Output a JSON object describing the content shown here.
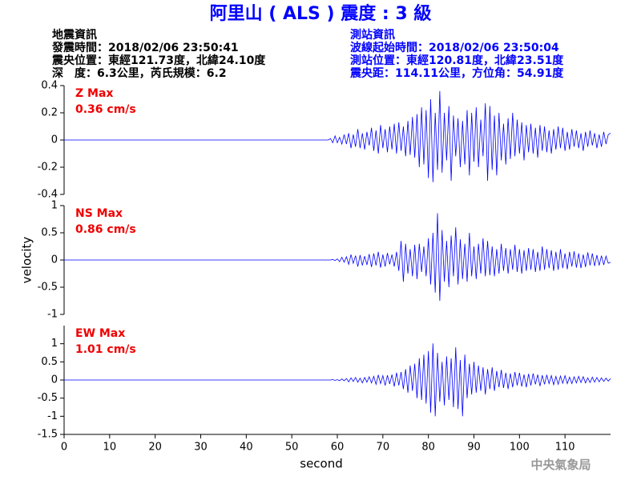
{
  "header": {
    "title": "阿里山 ( ALS ) 震度 : 3 級",
    "left": [
      "地震資訊",
      "發震時間：2018/02/06 23:50:41",
      "震央位置：東經121.73度，北緯24.10度",
      "深　度：6.3公里，芮氏規模：6.2"
    ],
    "right": [
      "測站資訊",
      "波線起始時間：2018/02/06 23:50:04",
      "測站位置：東經120.81度，北緯23.51度",
      "震央距：114.11公里，方位角：54.91度"
    ]
  },
  "y_label": "velocity",
  "watermark": "中央氣象局",
  "chart_data": [
    {
      "type": "line",
      "xlim": [
        0,
        120
      ],
      "ylim": [
        -0.4,
        0.4
      ],
      "yticks": [
        -0.4,
        -0.2,
        0,
        0.2,
        0.4
      ],
      "annotation": "0.36 cm/s",
      "annotation_color": "#ee0000",
      "x": [
        0,
        58,
        58.5,
        59,
        59.5,
        60,
        60.5,
        61,
        61.5,
        62,
        62.5,
        63,
        63.5,
        64,
        64.5,
        65,
        65.5,
        66,
        66.5,
        67,
        67.5,
        68,
        68.5,
        69,
        69.5,
        70,
        70.5,
        71,
        71.5,
        72,
        72.5,
        73,
        73.5,
        74,
        74.5,
        75,
        75.5,
        76,
        76.5,
        77,
        77.5,
        78,
        78.5,
        79,
        79.5,
        80,
        80.5,
        81,
        81.5,
        82,
        82.5,
        83,
        83.5,
        84,
        84.5,
        85,
        85.5,
        86,
        86.5,
        87,
        87.5,
        88,
        88.5,
        89,
        89.5,
        90,
        90.5,
        91,
        91.5,
        92,
        92.5,
        93,
        93.5,
        94,
        94.5,
        95,
        95.5,
        96,
        96.5,
        97,
        97.5,
        98,
        98.5,
        99,
        99.5,
        100,
        100.5,
        101,
        101.5,
        102,
        102.5,
        103,
        103.5,
        104,
        104.5,
        105,
        105.5,
        106,
        106.5,
        107,
        107.5,
        108,
        108.5,
        109,
        109.5,
        110,
        110.5,
        111,
        111.5,
        112,
        112.5,
        113,
        113.5,
        114,
        114.5,
        115,
        115.5,
        116,
        116.5,
        117,
        117.5,
        118,
        118.5,
        119,
        119.5,
        120
      ],
      "series": [
        {
          "name": "Z Max",
          "color": "#0000ff",
          "values": [
            0,
            0,
            0.01,
            -0.02,
            0.03,
            -0.02,
            0.02,
            -0.03,
            0.04,
            -0.03,
            0.05,
            -0.06,
            0.04,
            -0.05,
            0.08,
            -0.06,
            0.05,
            -0.07,
            0.06,
            -0.04,
            0.09,
            -0.08,
            0.07,
            -0.1,
            0.11,
            -0.06,
            0.08,
            -0.09,
            0.1,
            -0.07,
            0.12,
            -0.1,
            0.13,
            -0.08,
            0.1,
            -0.12,
            0.14,
            -0.11,
            0.17,
            -0.13,
            0.19,
            -0.2,
            0.24,
            -0.18,
            0.22,
            -0.28,
            0.3,
            -0.31,
            0.2,
            -0.22,
            0.36,
            -0.24,
            0.2,
            -0.15,
            0.25,
            -0.3,
            0.18,
            -0.12,
            0.16,
            -0.2,
            0.14,
            -0.18,
            0.22,
            -0.26,
            0.2,
            -0.16,
            0.24,
            -0.2,
            0.15,
            -0.12,
            0.27,
            -0.3,
            0.25,
            -0.22,
            0.18,
            -0.26,
            0.2,
            -0.15,
            0.12,
            -0.18,
            0.16,
            -0.14,
            0.2,
            -0.12,
            0.15,
            -0.1,
            0.13,
            -0.15,
            0.11,
            -0.09,
            0.12,
            -0.1,
            0.09,
            -0.13,
            0.11,
            -0.08,
            0.1,
            -0.09,
            0.07,
            -0.1,
            0.08,
            -0.07,
            0.1,
            -0.06,
            0.09,
            -0.08,
            0.06,
            -0.07,
            0.08,
            -0.05,
            0.07,
            -0.06,
            0.05,
            -0.08,
            0.06,
            -0.05,
            0.07,
            -0.04,
            0.05,
            -0.06,
            0.04,
            -0.05,
            0.06,
            -0.03,
            0.04,
            0.05
          ]
        }
      ]
    },
    {
      "type": "line",
      "xlim": [
        0,
        120
      ],
      "ylim": [
        -1,
        1
      ],
      "yticks": [
        -1,
        -0.5,
        0,
        0.5,
        1
      ],
      "annotation": "0.86 cm/s",
      "annotation_color": "#ee0000",
      "x": [
        0,
        58,
        58.5,
        59,
        59.5,
        60,
        60.5,
        61,
        61.5,
        62,
        62.5,
        63,
        63.5,
        64,
        64.5,
        65,
        65.5,
        66,
        66.5,
        67,
        67.5,
        68,
        68.5,
        69,
        69.5,
        70,
        70.5,
        71,
        71.5,
        72,
        72.5,
        73,
        73.5,
        74,
        74.5,
        75,
        75.5,
        76,
        76.5,
        77,
        77.5,
        78,
        78.5,
        79,
        79.5,
        80,
        80.5,
        81,
        81.5,
        82,
        82.5,
        83,
        83.5,
        84,
        84.5,
        85,
        85.5,
        86,
        86.5,
        87,
        87.5,
        88,
        88.5,
        89,
        89.5,
        90,
        90.5,
        91,
        91.5,
        92,
        92.5,
        93,
        93.5,
        94,
        94.5,
        95,
        95.5,
        96,
        96.5,
        97,
        97.5,
        98,
        98.5,
        99,
        99.5,
        100,
        100.5,
        101,
        101.5,
        102,
        102.5,
        103,
        103.5,
        104,
        104.5,
        105,
        105.5,
        106,
        106.5,
        107,
        107.5,
        108,
        108.5,
        109,
        109.5,
        110,
        110.5,
        111,
        111.5,
        112,
        112.5,
        113,
        113.5,
        114,
        114.5,
        115,
        115.5,
        116,
        116.5,
        117,
        117.5,
        118,
        118.5,
        119,
        119.5,
        120
      ],
      "series": [
        {
          "name": "NS Max",
          "color": "#0000ff",
          "values": [
            0,
            0,
            0,
            0.01,
            -0.01,
            0.02,
            -0.03,
            0.05,
            -0.04,
            0.06,
            -0.08,
            0.1,
            -0.06,
            0.08,
            -0.12,
            0.09,
            -0.1,
            0.07,
            -0.09,
            0.11,
            -0.13,
            0.12,
            -0.1,
            0.15,
            -0.14,
            0.1,
            -0.12,
            0.13,
            -0.08,
            0.1,
            -0.12,
            0.15,
            -0.2,
            0.35,
            -0.4,
            0.3,
            -0.25,
            0.2,
            -0.3,
            0.28,
            -0.35,
            0.3,
            -0.22,
            0.25,
            -0.3,
            0.4,
            -0.45,
            0.5,
            -0.6,
            0.86,
            -0.75,
            0.55,
            -0.4,
            0.35,
            -0.5,
            0.45,
            -0.3,
            0.6,
            -0.45,
            0.38,
            -0.35,
            0.3,
            -0.4,
            0.5,
            -0.3,
            0.25,
            -0.35,
            0.3,
            -0.25,
            0.4,
            -0.3,
            0.35,
            -0.28,
            0.25,
            -0.3,
            0.2,
            -0.25,
            0.3,
            -0.2,
            0.22,
            -0.25,
            0.2,
            -0.18,
            0.28,
            -0.22,
            0.2,
            -0.25,
            0.18,
            -0.2,
            0.22,
            -0.18,
            0.2,
            -0.22,
            0.15,
            -0.2,
            0.25,
            -0.18,
            0.2,
            -0.15,
            0.18,
            -0.2,
            0.15,
            -0.18,
            0.2,
            -0.15,
            0.12,
            -0.17,
            0.15,
            -0.12,
            0.16,
            -0.14,
            0.12,
            -0.15,
            0.1,
            -0.13,
            0.14,
            -0.1,
            0.12,
            -0.11,
            0.09,
            -0.1,
            0.08,
            -0.09,
            0.07,
            -0.06,
            -0.04
          ]
        }
      ]
    },
    {
      "type": "line",
      "xlim": [
        0,
        120
      ],
      "ylim": [
        -1.5,
        1.5
      ],
      "yticks": [
        -1.5,
        -1,
        -0.5,
        0,
        0.5,
        1
      ],
      "xticks": [
        0,
        10,
        20,
        30,
        40,
        50,
        60,
        70,
        80,
        90,
        100,
        110
      ],
      "xlabel": "second",
      "annotation": "1.01 cm/s",
      "annotation_color": "#ee0000",
      "x": [
        0,
        58,
        58.5,
        59,
        59.5,
        60,
        60.5,
        61,
        61.5,
        62,
        62.5,
        63,
        63.5,
        64,
        64.5,
        65,
        65.5,
        66,
        66.5,
        67,
        67.5,
        68,
        68.5,
        69,
        69.5,
        70,
        70.5,
        71,
        71.5,
        72,
        72.5,
        73,
        73.5,
        74,
        74.5,
        75,
        75.5,
        76,
        76.5,
        77,
        77.5,
        78,
        78.5,
        79,
        79.5,
        80,
        80.5,
        81,
        81.5,
        82,
        82.5,
        83,
        83.5,
        84,
        84.5,
        85,
        85.5,
        86,
        86.5,
        87,
        87.5,
        88,
        88.5,
        89,
        89.5,
        90,
        90.5,
        91,
        91.5,
        92,
        92.5,
        93,
        93.5,
        94,
        94.5,
        95,
        95.5,
        96,
        96.5,
        97,
        97.5,
        98,
        98.5,
        99,
        99.5,
        100,
        100.5,
        101,
        101.5,
        102,
        102.5,
        103,
        103.5,
        104,
        104.5,
        105,
        105.5,
        106,
        106.5,
        107,
        107.5,
        108,
        108.5,
        109,
        109.5,
        110,
        110.5,
        111,
        111.5,
        112,
        112.5,
        113,
        113.5,
        114,
        114.5,
        115,
        115.5,
        116,
        116.5,
        117,
        117.5,
        118,
        118.5,
        119,
        119.5,
        120
      ],
      "series": [
        {
          "name": "EW Max",
          "color": "#0000ff",
          "values": [
            0,
            0,
            0,
            0.01,
            -0.01,
            0.01,
            -0.02,
            0.03,
            -0.02,
            0.04,
            -0.05,
            0.06,
            -0.04,
            0.07,
            -0.06,
            0.05,
            -0.08,
            0.07,
            -0.06,
            0.09,
            -0.08,
            0.1,
            -0.12,
            0.14,
            -0.1,
            0.12,
            -0.15,
            0.13,
            -0.11,
            0.15,
            -0.18,
            0.2,
            -0.15,
            0.22,
            -0.25,
            0.3,
            -0.35,
            0.4,
            -0.3,
            0.45,
            -0.5,
            0.6,
            -0.55,
            0.7,
            -0.65,
            0.8,
            -0.9,
            1.01,
            -1.0,
            0.75,
            -0.6,
            0.5,
            -0.7,
            0.65,
            -0.55,
            0.6,
            -0.75,
            0.9,
            -0.8,
            0.55,
            -1.0,
            0.7,
            -0.5,
            0.45,
            -0.4,
            0.5,
            -0.35,
            0.4,
            -0.3,
            0.35,
            -0.4,
            0.3,
            -0.25,
            0.35,
            -0.3,
            0.25,
            -0.2,
            0.28,
            -0.22,
            0.2,
            -0.25,
            0.18,
            -0.2,
            0.22,
            -0.15,
            0.2,
            -0.18,
            0.15,
            -0.2,
            0.17,
            -0.15,
            0.18,
            -0.12,
            0.15,
            -0.17,
            0.13,
            -0.12,
            0.14,
            -0.1,
            0.12,
            -0.13,
            0.1,
            -0.12,
            0.11,
            -0.09,
            0.12,
            -0.1,
            0.08,
            -0.1,
            0.09,
            -0.08,
            0.1,
            -0.07,
            0.09,
            -0.08,
            0.06,
            -0.07,
            0.08,
            -0.06,
            0.07,
            -0.05,
            0.06,
            -0.04,
            0.05,
            -0.03,
            0.04
          ]
        }
      ]
    }
  ]
}
